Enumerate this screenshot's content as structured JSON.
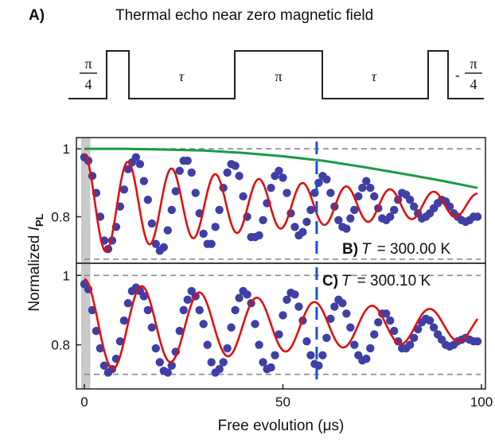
{
  "panel_a": {
    "label": "A)",
    "title": "Thermal echo near zero magnetic field",
    "pulse_labels": {
      "left_num": "π",
      "left_den": "4",
      "tau1": "τ",
      "pi": "π",
      "tau2": "τ",
      "right_sign": "-",
      "right_num": "π",
      "right_den": "4"
    }
  },
  "chart_data": [
    {
      "type": "scatter",
      "panel": "B)",
      "label_text": "B)",
      "temp_symbol": "T",
      "temp_value": "= 300.00 K",
      "xlim": [
        -2,
        101
      ],
      "ylim": [
        0.663,
        1.033
      ],
      "yticks": [
        0.8,
        1
      ],
      "ytick_labels": [
        "0.8",
        "1"
      ],
      "ylabel_prefix": "Normalized ",
      "ylabel_var": "I",
      "ylabel_sub": "PL",
      "reference_lines": [
        1.0,
        0.675
      ],
      "marker_x": 58.5,
      "shaded_x": [
        0,
        1.5
      ],
      "fit": {
        "offset": 0.835,
        "amp": 0.15,
        "period": 11.0,
        "phase": 0,
        "decay": 65,
        "color": "#e01010"
      },
      "envelope": {
        "x": [
          0,
          10,
          20,
          30,
          40,
          50,
          60,
          70,
          80,
          90,
          99
        ],
        "y": [
          1.0,
          1.0,
          0.998,
          0.995,
          0.988,
          0.978,
          0.965,
          0.947,
          0.927,
          0.906,
          0.885
        ],
        "color": "#1a9a46"
      },
      "series": [
        {
          "color": "#3f3fa5",
          "x": [
            0,
            1,
            2,
            3,
            4,
            5,
            6,
            7,
            8,
            9,
            10,
            11,
            12,
            13,
            14,
            15,
            16,
            17,
            18,
            19,
            20,
            21,
            22,
            23,
            24,
            25,
            26,
            27,
            28,
            29,
            30,
            31,
            32,
            33,
            34,
            35,
            36,
            37,
            38,
            39,
            40,
            41,
            42,
            43,
            44,
            45,
            46,
            47,
            48,
            49,
            50,
            51,
            52,
            53,
            54,
            55,
            56,
            57,
            58,
            59,
            60,
            61,
            62,
            63,
            64,
            65,
            66,
            67,
            68,
            69,
            70,
            71,
            72,
            73,
            74,
            75,
            76,
            77,
            78,
            79,
            80,
            81,
            82,
            83,
            84,
            85,
            86,
            87,
            88,
            89,
            90,
            91,
            92,
            93,
            94,
            95,
            96,
            97,
            98,
            99
          ],
          "y": [
            0.975,
            0.965,
            0.92,
            0.87,
            0.8,
            0.73,
            0.705,
            0.73,
            0.77,
            0.83,
            0.88,
            0.94,
            0.96,
            0.975,
            0.955,
            0.905,
            0.85,
            0.78,
            0.72,
            0.7,
            0.71,
            0.76,
            0.82,
            0.875,
            0.935,
            0.965,
            0.965,
            0.93,
            0.87,
            0.81,
            0.75,
            0.72,
            0.72,
            0.77,
            0.82,
            0.885,
            0.93,
            0.955,
            0.95,
            0.92,
            0.86,
            0.8,
            0.74,
            0.74,
            0.745,
            0.79,
            0.84,
            0.885,
            0.92,
            0.935,
            0.915,
            0.87,
            0.81,
            0.77,
            0.745,
            0.755,
            0.785,
            0.82,
            0.87,
            0.9,
            0.92,
            0.91,
            0.87,
            0.83,
            0.79,
            0.77,
            0.765,
            0.795,
            0.82,
            0.86,
            0.885,
            0.905,
            0.885,
            0.86,
            0.825,
            0.795,
            0.79,
            0.8,
            0.82,
            0.85,
            0.87,
            0.865,
            0.85,
            0.83,
            0.81,
            0.795,
            0.8,
            0.81,
            0.825,
            0.84,
            0.85,
            0.845,
            0.83,
            0.81,
            0.8,
            0.79,
            0.785,
            0.79,
            0.8,
            0.8
          ]
        }
      ]
    },
    {
      "type": "scatter",
      "panel": "C)",
      "label_text": "C)",
      "temp_symbol": "T",
      "temp_value": "= 300.10 K",
      "xlim": [
        -2,
        101
      ],
      "ylim": [
        0.673,
        1.035
      ],
      "xticks": [
        0,
        50,
        100
      ],
      "xtick_labels": [
        "0",
        "50",
        "100"
      ],
      "yticks": [
        0.8,
        1
      ],
      "ytick_labels": [
        "0.8",
        "1"
      ],
      "xlabel": "Free evolution (μs)",
      "reference_lines": [
        1.0,
        0.715
      ],
      "marker_x": 58.5,
      "shaded_x": [
        0,
        1.5
      ],
      "fit": {
        "offset": 0.855,
        "amp": 0.135,
        "period": 14.5,
        "phase": 0,
        "decay": 85,
        "color": "#e01010"
      },
      "series": [
        {
          "color": "#3f3fa5",
          "x": [
            0,
            1,
            2,
            3,
            4,
            5,
            6,
            7,
            8,
            9,
            10,
            11,
            12,
            13,
            14,
            15,
            16,
            17,
            18,
            19,
            20,
            21,
            22,
            23,
            24,
            25,
            26,
            27,
            28,
            29,
            30,
            31,
            32,
            33,
            34,
            35,
            36,
            37,
            38,
            39,
            40,
            41,
            42,
            43,
            44,
            45,
            46,
            47,
            48,
            49,
            50,
            51,
            52,
            53,
            54,
            55,
            56,
            57,
            58,
            59,
            60,
            61,
            62,
            63,
            64,
            65,
            66,
            67,
            68,
            69,
            70,
            71,
            72,
            73,
            74,
            75,
            76,
            77,
            78,
            79,
            80,
            81,
            82,
            83,
            84,
            85,
            86,
            87,
            88,
            89,
            90,
            91,
            92,
            93,
            94,
            95,
            96,
            97,
            98,
            99
          ],
          "y": [
            0.975,
            0.96,
            0.9,
            0.84,
            0.79,
            0.74,
            0.72,
            0.73,
            0.76,
            0.81,
            0.87,
            0.92,
            0.955,
            0.965,
            0.955,
            0.94,
            0.9,
            0.85,
            0.79,
            0.75,
            0.725,
            0.72,
            0.74,
            0.78,
            0.84,
            0.9,
            0.93,
            0.955,
            0.94,
            0.9,
            0.86,
            0.8,
            0.75,
            0.72,
            0.73,
            0.75,
            0.79,
            0.85,
            0.9,
            0.935,
            0.955,
            0.945,
            0.92,
            0.86,
            0.8,
            0.75,
            0.73,
            0.735,
            0.77,
            0.83,
            0.885,
            0.93,
            0.95,
            0.945,
            0.91,
            0.87,
            0.81,
            0.77,
            0.745,
            0.74,
            0.77,
            0.82,
            0.875,
            0.91,
            0.93,
            0.92,
            0.89,
            0.85,
            0.8,
            0.77,
            0.755,
            0.76,
            0.79,
            0.83,
            0.865,
            0.89,
            0.89,
            0.87,
            0.84,
            0.81,
            0.79,
            0.79,
            0.8,
            0.82,
            0.845,
            0.865,
            0.875,
            0.87,
            0.85,
            0.83,
            0.815,
            0.8,
            0.795,
            0.8,
            0.81,
            0.815,
            0.82,
            0.815,
            0.81,
            0.81
          ]
        }
      ]
    }
  ]
}
